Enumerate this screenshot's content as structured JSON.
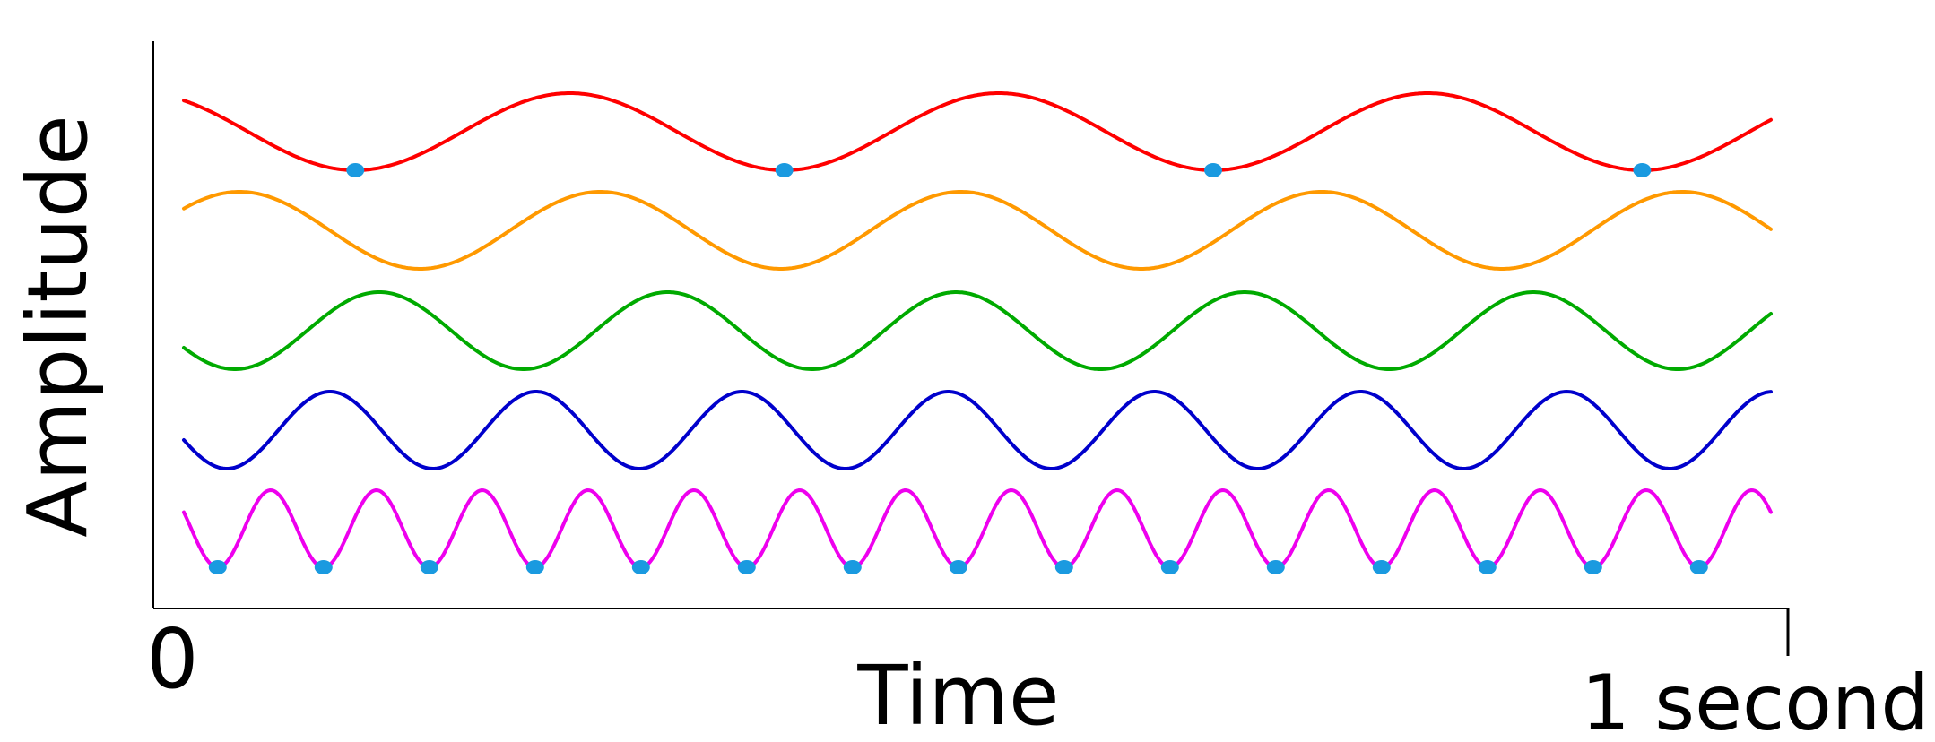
{
  "chart_data": {
    "type": "line",
    "xlabel": "Time",
    "ylabel": "Amplitude",
    "x_tick_labels": {
      "start": "0",
      "end": "1 second"
    },
    "xlim": [
      0,
      1
    ],
    "grid": false,
    "legend": "none",
    "series": [
      {
        "color": "#ff0000",
        "frequency_hz": 3.7,
        "marker_points": 4,
        "marker_color": "#1a9ae0"
      },
      {
        "color": "#ff9900",
        "frequency_hz": 4.4,
        "marker_points": 0
      },
      {
        "color": "#00aa00",
        "frequency_hz": 5.5,
        "marker_points": 0
      },
      {
        "color": "#0000cc",
        "frequency_hz": 7.7,
        "marker_points": 0
      },
      {
        "color": "#ee00ee",
        "frequency_hz": 15,
        "marker_points": 15,
        "marker_color": "#1a9ae0"
      }
    ]
  }
}
